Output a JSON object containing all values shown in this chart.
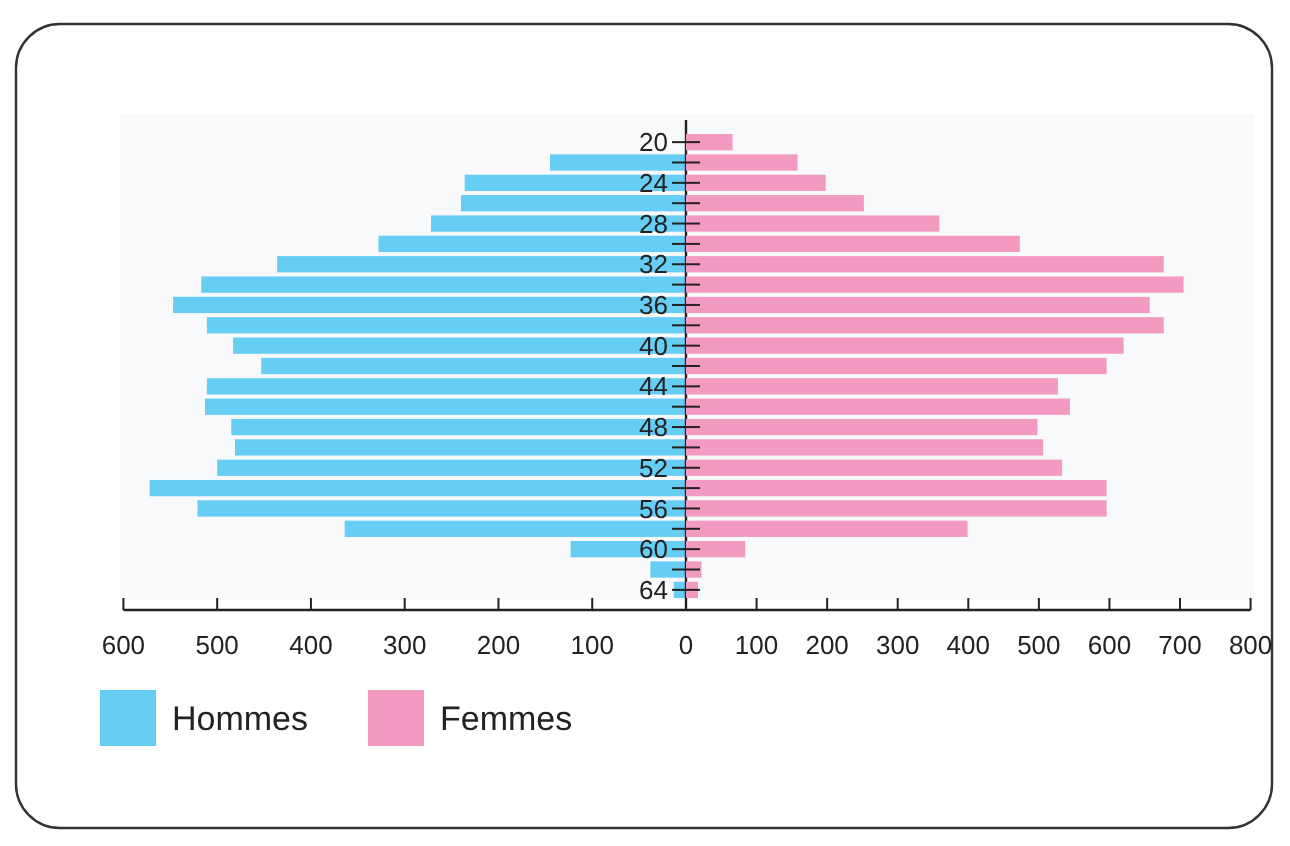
{
  "chart_data": [
    {
      "type": "bar",
      "orientation": "horizontal",
      "categories": [
        "20",
        null,
        "24",
        null,
        "28",
        null,
        "32",
        null,
        "36",
        null,
        "40",
        null,
        "44",
        null,
        "48",
        null,
        "52",
        null,
        "56",
        null,
        "60",
        null,
        "64"
      ],
      "series": [
        {
          "name": "Hommes",
          "color": "#66cdf5",
          "values": [
            0,
            145,
            236,
            240,
            272,
            328,
            436,
            517,
            547,
            511,
            483,
            453,
            511,
            513,
            485,
            481,
            500,
            572,
            521,
            364,
            123,
            38,
            13
          ]
        }
      ],
      "xlim": [
        600,
        0
      ],
      "xticks": [
        600,
        500,
        400,
        300,
        200,
        100,
        0
      ],
      "legend": "bottom"
    },
    {
      "type": "bar",
      "orientation": "horizontal",
      "categories": [
        "20",
        null,
        "24",
        null,
        "28",
        null,
        "32",
        null,
        "36",
        null,
        "40",
        null,
        "44",
        null,
        "48",
        null,
        "52",
        null,
        "56",
        null,
        "60",
        null,
        "64"
      ],
      "series": [
        {
          "name": "Femmes",
          "color": "#f39ac1",
          "values": [
            66,
            158,
            198,
            252,
            359,
            473,
            677,
            705,
            657,
            677,
            620,
            596,
            527,
            544,
            498,
            506,
            533,
            596,
            596,
            399,
            84,
            22,
            17
          ]
        }
      ],
      "xlim": [
        0,
        800
      ],
      "xticks": [
        {
          "value": 0,
          "label": null
        },
        100,
        200,
        300,
        400,
        500,
        600,
        700,
        800
      ],
      "tick_labels": "x",
      "legend": "bottom"
    }
  ]
}
